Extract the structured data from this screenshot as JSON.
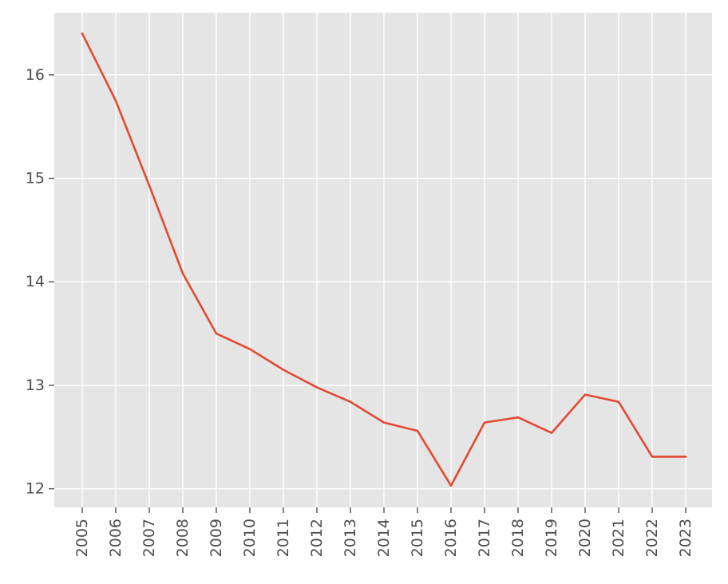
{
  "chart_data": {
    "type": "line",
    "title": "",
    "xlabel": "",
    "ylabel": "",
    "x": [
      "2005",
      "2006",
      "2007",
      "2008",
      "2009",
      "2010",
      "2011",
      "2012",
      "2013",
      "2014",
      "2015",
      "2016",
      "2017",
      "2018",
      "2019",
      "2020",
      "2021",
      "2022",
      "2023"
    ],
    "series": [
      {
        "values": [
          16.4,
          15.75,
          14.93,
          14.08,
          13.5,
          13.35,
          13.15,
          12.98,
          12.84,
          12.64,
          12.56,
          12.03,
          12.64,
          12.69,
          12.54,
          12.91,
          12.84,
          12.31,
          12.31
        ],
        "color": "#e24a33"
      }
    ],
    "yticks": [
      "12",
      "13",
      "14",
      "15",
      "16"
    ],
    "ylim": [
      11.82,
      16.6
    ],
    "grid": true,
    "style": "ggplot",
    "background_color": "#e5e5e5",
    "grid_color": "#ffffff",
    "tick_color": "#4d4d4d"
  }
}
